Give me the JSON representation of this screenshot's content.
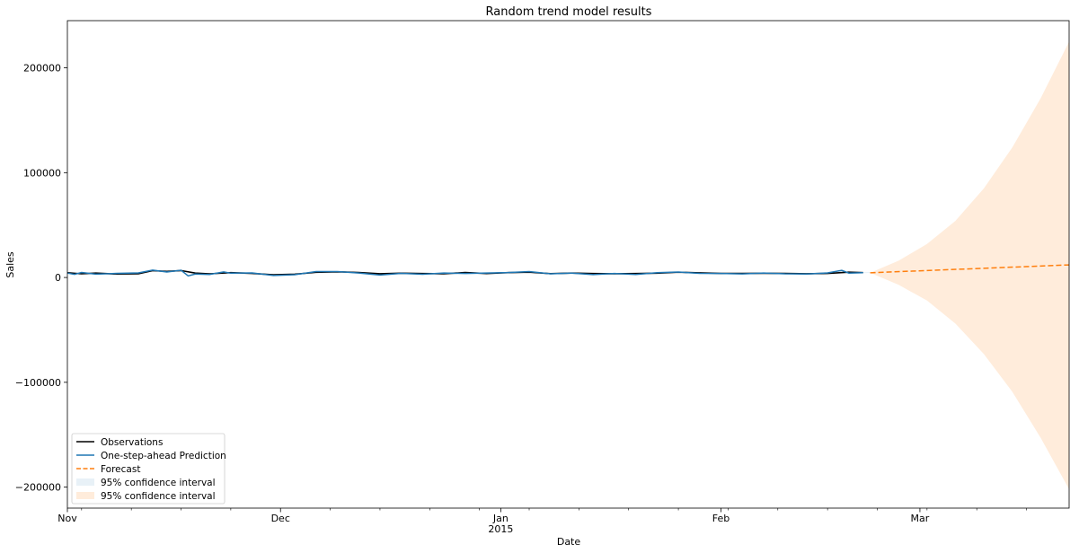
{
  "chart_data": {
    "type": "line",
    "title": "Random trend model results",
    "xlabel": "Date",
    "ylabel": "Sales",
    "x_range": [
      "2014-11-01",
      "2015-03-22"
    ],
    "ylim": [
      -220000,
      245000
    ],
    "grid": false,
    "legend_position": "lower-left",
    "y_ticks": [
      {
        "value": 200000,
        "label": "200000"
      },
      {
        "value": 100000,
        "label": "100000"
      },
      {
        "value": 0,
        "label": "0"
      },
      {
        "value": -100000,
        "label": "−100000"
      },
      {
        "value": -200000,
        "label": "−200000"
      }
    ],
    "x_ticks": [
      {
        "date": "2014-11-01",
        "label": "Nov"
      },
      {
        "date": "2014-12-01",
        "label": "Dec"
      },
      {
        "date": "2015-01-01",
        "label": "Jan",
        "sublabel": "2015"
      },
      {
        "date": "2015-02-01",
        "label": "Feb"
      },
      {
        "date": "2015-03-01",
        "label": "Mar"
      }
    ],
    "x_minor_ticks": [
      "2014-11-03",
      "2014-11-10",
      "2014-11-17",
      "2014-11-24",
      "2014-12-08",
      "2014-12-15",
      "2014-12-22",
      "2014-12-29",
      "2015-01-05",
      "2015-01-12",
      "2015-01-19",
      "2015-01-26",
      "2015-02-02",
      "2015-02-09",
      "2015-02-16",
      "2015-02-23",
      "2015-03-02",
      "2015-03-09",
      "2015-03-16"
    ],
    "series": [
      {
        "name": "Observations",
        "color": "#000000",
        "style": "solid",
        "x": [
          "2014-11-01",
          "2014-11-03",
          "2014-11-05",
          "2014-11-08",
          "2014-11-11",
          "2014-11-13",
          "2014-11-15",
          "2014-11-17",
          "2014-11-19",
          "2014-11-21",
          "2014-11-24",
          "2014-11-27",
          "2014-11-30",
          "2014-12-03",
          "2014-12-06",
          "2014-12-09",
          "2014-12-12",
          "2014-12-15",
          "2014-12-18",
          "2014-12-21",
          "2014-12-24",
          "2014-12-27",
          "2014-12-30",
          "2015-01-02",
          "2015-01-05",
          "2015-01-08",
          "2015-01-11",
          "2015-01-14",
          "2015-01-17",
          "2015-01-20",
          "2015-01-23",
          "2015-01-26",
          "2015-01-29",
          "2015-02-01",
          "2015-02-04",
          "2015-02-07",
          "2015-02-10",
          "2015-02-13",
          "2015-02-16",
          "2015-02-19",
          "2015-02-21"
        ],
        "y": [
          4500,
          3500,
          4200,
          3300,
          3600,
          6500,
          5800,
          6600,
          4200,
          3500,
          4600,
          3900,
          2600,
          3100,
          4900,
          5400,
          4800,
          3600,
          4100,
          3800,
          3600,
          4700,
          3800,
          4600,
          5000,
          3700,
          4200,
          3800,
          3600,
          3800,
          4100,
          5000,
          4400,
          3900,
          3900,
          4000,
          3900,
          3600,
          3900,
          5100,
          4600
        ]
      },
      {
        "name": "One-step-ahead Prediction",
        "color": "#1f77b4",
        "style": "solid",
        "x": [
          "2014-11-01",
          "2014-11-02",
          "2014-11-03",
          "2014-11-05",
          "2014-11-08",
          "2014-11-11",
          "2014-11-13",
          "2014-11-15",
          "2014-11-17",
          "2014-11-18",
          "2014-11-19",
          "2014-11-21",
          "2014-11-23",
          "2014-11-24",
          "2014-11-27",
          "2014-11-30",
          "2014-12-03",
          "2014-12-06",
          "2014-12-09",
          "2014-12-12",
          "2014-12-15",
          "2014-12-18",
          "2014-12-21",
          "2014-12-24",
          "2014-12-27",
          "2014-12-30",
          "2015-01-02",
          "2015-01-05",
          "2015-01-08",
          "2015-01-11",
          "2015-01-14",
          "2015-01-17",
          "2015-01-20",
          "2015-01-23",
          "2015-01-26",
          "2015-01-29",
          "2015-02-01",
          "2015-02-04",
          "2015-02-07",
          "2015-02-10",
          "2015-02-13",
          "2015-02-16",
          "2015-02-18",
          "2015-02-19",
          "2015-02-21"
        ],
        "y": [
          4200,
          3000,
          4800,
          3200,
          3900,
          4400,
          7000,
          5200,
          6900,
          1500,
          3300,
          2900,
          5300,
          4100,
          4400,
          1900,
          2700,
          5600,
          5700,
          4300,
          2300,
          3900,
          3100,
          4300,
          3800,
          4300,
          4700,
          5600,
          3500,
          4200,
          2800,
          3800,
          2900,
          4600,
          5200,
          3900,
          3800,
          3400,
          4300,
          3500,
          3300,
          4400,
          6800,
          4200,
          4600
        ]
      },
      {
        "name": "Forecast",
        "color": "#ff7f0e",
        "style": "dashed",
        "x": [
          "2015-02-22",
          "2015-03-22"
        ],
        "y": [
          4500,
          12000
        ]
      }
    ],
    "confidence_intervals": [
      {
        "name": "95% confidence interval",
        "color": "#1f77b4",
        "opacity": 0.1,
        "x": [
          "2015-02-21",
          "2015-02-22"
        ],
        "lower": [
          4200,
          4400
        ],
        "upper": [
          5000,
          5200
        ]
      },
      {
        "name": "95% confidence interval",
        "color": "#ff7f0e",
        "opacity": 0.15,
        "x": [
          "2015-02-22",
          "2015-02-26",
          "2015-03-02",
          "2015-03-06",
          "2015-03-10",
          "2015-03-14",
          "2015-03-18",
          "2015-03-22"
        ],
        "lower": [
          4500,
          -7000,
          -22000,
          -44000,
          -73000,
          -109000,
          -153000,
          -202000
        ],
        "upper": [
          4500,
          16000,
          32000,
          54000,
          85000,
          124000,
          171000,
          225000
        ]
      }
    ]
  }
}
